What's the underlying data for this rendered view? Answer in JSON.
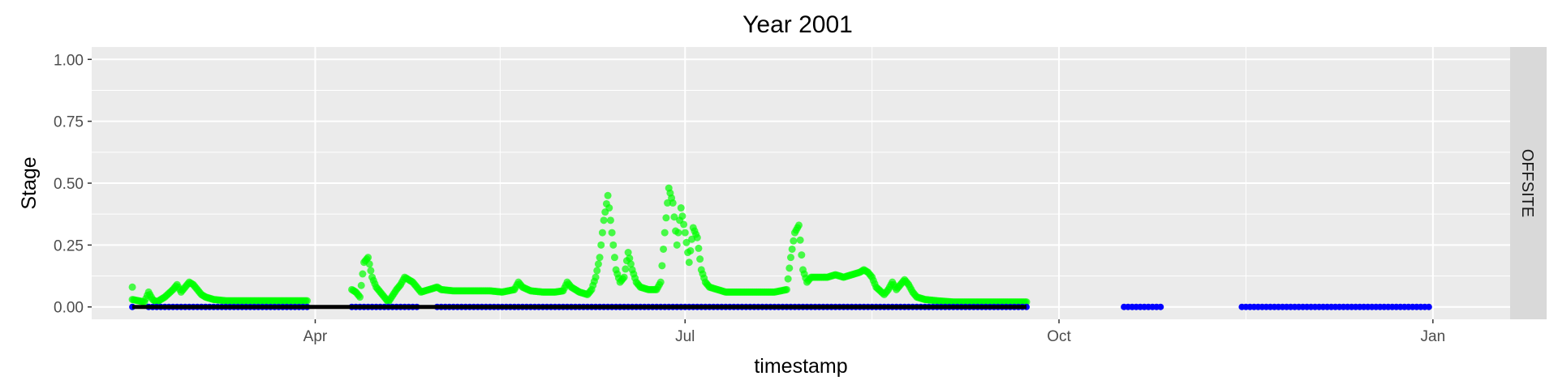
{
  "chart_data": {
    "type": "scatter",
    "title": "Year 2001",
    "xlabel": "timestamp",
    "ylabel": "Stage",
    "facet_label": "OFFSITE",
    "x_range": [
      "2001-02-05",
      "2002-01-20"
    ],
    "ylim": [
      -0.05,
      1.05
    ],
    "y_ticks": [
      {
        "value": 0.0,
        "label": "0.00"
      },
      {
        "value": 0.25,
        "label": "0.25"
      },
      {
        "value": 0.5,
        "label": "0.50"
      },
      {
        "value": 0.75,
        "label": "0.75"
      },
      {
        "value": 1.0,
        "label": "1.00"
      }
    ],
    "x_ticks": [
      {
        "date": "2001-04-01",
        "label": "Apr"
      },
      {
        "date": "2001-07-01",
        "label": "Jul"
      },
      {
        "date": "2001-10-01",
        "label": "Oct"
      },
      {
        "date": "2002-01-01",
        "label": "Jan"
      }
    ],
    "grid": true,
    "colors": {
      "panel": "#ebebeb",
      "grid": "#ffffff",
      "strip": "#d9d9d9",
      "observed": "#00ff00",
      "baseline_line": "#000000",
      "baseline_points": "#0000ff"
    },
    "series": [
      {
        "type": "scatter",
        "color": "#00ff00",
        "points": [
          [
            "2001-02-15",
            0.08
          ],
          [
            "2001-02-15",
            0.03
          ],
          [
            "2001-02-18",
            0.02
          ],
          [
            "2001-02-19",
            0.06
          ],
          [
            "2001-02-20",
            0.03
          ],
          [
            "2001-02-21",
            0.02
          ],
          [
            "2001-02-23",
            0.04
          ],
          [
            "2001-02-25",
            0.07
          ],
          [
            "2001-02-26",
            0.09
          ],
          [
            "2001-02-27",
            0.06
          ],
          [
            "2001-02-28",
            0.08
          ],
          [
            "2001-03-01",
            0.1
          ],
          [
            "2001-03-02",
            0.09
          ],
          [
            "2001-03-03",
            0.07
          ],
          [
            "2001-03-04",
            0.05
          ],
          [
            "2001-03-05",
            0.04
          ],
          [
            "2001-03-07",
            0.03
          ],
          [
            "2001-03-10",
            0.025
          ],
          [
            "2001-03-14",
            0.025
          ],
          [
            "2001-03-18",
            0.025
          ],
          [
            "2001-03-22",
            0.025
          ],
          [
            "2001-03-26",
            0.025
          ],
          [
            "2001-03-30",
            0.025
          ],
          [
            "2001-04-10",
            0.07
          ],
          [
            "2001-04-11",
            0.06
          ],
          [
            "2001-04-12",
            0.04
          ],
          [
            "2001-04-13",
            0.18
          ],
          [
            "2001-04-14",
            0.2
          ],
          [
            "2001-04-15",
            0.12
          ],
          [
            "2001-04-16",
            0.08
          ],
          [
            "2001-04-17",
            0.06
          ],
          [
            "2001-04-18",
            0.04
          ],
          [
            "2001-04-19",
            0.02
          ],
          [
            "2001-04-21",
            0.07
          ],
          [
            "2001-04-22",
            0.09
          ],
          [
            "2001-04-23",
            0.12
          ],
          [
            "2001-04-24",
            0.11
          ],
          [
            "2001-04-25",
            0.1
          ],
          [
            "2001-04-26",
            0.08
          ],
          [
            "2001-04-27",
            0.06
          ],
          [
            "2001-05-01",
            0.08
          ],
          [
            "2001-05-02",
            0.07
          ],
          [
            "2001-05-05",
            0.065
          ],
          [
            "2001-05-08",
            0.065
          ],
          [
            "2001-05-11",
            0.065
          ],
          [
            "2001-05-14",
            0.065
          ],
          [
            "2001-05-17",
            0.06
          ],
          [
            "2001-05-20",
            0.07
          ],
          [
            "2001-05-21",
            0.1
          ],
          [
            "2001-05-22",
            0.08
          ],
          [
            "2001-05-24",
            0.065
          ],
          [
            "2001-05-27",
            0.06
          ],
          [
            "2001-05-30",
            0.06
          ],
          [
            "2001-06-01",
            0.065
          ],
          [
            "2001-06-02",
            0.1
          ],
          [
            "2001-06-03",
            0.08
          ],
          [
            "2001-06-05",
            0.06
          ],
          [
            "2001-06-07",
            0.05
          ],
          [
            "2001-06-08",
            0.07
          ],
          [
            "2001-06-09",
            0.12
          ],
          [
            "2001-06-10",
            0.2
          ],
          [
            "2001-06-11",
            0.35
          ],
          [
            "2001-06-12",
            0.45
          ],
          [
            "2001-06-13",
            0.3
          ],
          [
            "2001-06-14",
            0.15
          ],
          [
            "2001-06-15",
            0.1
          ],
          [
            "2001-06-16",
            0.12
          ],
          [
            "2001-06-17",
            0.22
          ],
          [
            "2001-06-18",
            0.15
          ],
          [
            "2001-06-19",
            0.1
          ],
          [
            "2001-06-20",
            0.08
          ],
          [
            "2001-06-22",
            0.07
          ],
          [
            "2001-06-24",
            0.07
          ],
          [
            "2001-06-25",
            0.1
          ],
          [
            "2001-06-26",
            0.3
          ],
          [
            "2001-06-27",
            0.48
          ],
          [
            "2001-06-28",
            0.42
          ],
          [
            "2001-06-29",
            0.25
          ],
          [
            "2001-06-30",
            0.4
          ],
          [
            "2001-07-01",
            0.3
          ],
          [
            "2001-07-02",
            0.18
          ],
          [
            "2001-07-03",
            0.32
          ],
          [
            "2001-07-04",
            0.28
          ],
          [
            "2001-07-05",
            0.15
          ],
          [
            "2001-07-06",
            0.1
          ],
          [
            "2001-07-07",
            0.08
          ],
          [
            "2001-07-09",
            0.07
          ],
          [
            "2001-07-11",
            0.06
          ],
          [
            "2001-07-14",
            0.06
          ],
          [
            "2001-07-17",
            0.06
          ],
          [
            "2001-07-20",
            0.06
          ],
          [
            "2001-07-23",
            0.06
          ],
          [
            "2001-07-26",
            0.07
          ],
          [
            "2001-07-27",
            0.2
          ],
          [
            "2001-07-28",
            0.3
          ],
          [
            "2001-07-29",
            0.33
          ],
          [
            "2001-07-30",
            0.15
          ],
          [
            "2001-07-31",
            0.1
          ],
          [
            "2001-08-01",
            0.12
          ],
          [
            "2001-08-03",
            0.12
          ],
          [
            "2001-08-05",
            0.12
          ],
          [
            "2001-08-07",
            0.13
          ],
          [
            "2001-08-09",
            0.12
          ],
          [
            "2001-08-11",
            0.13
          ],
          [
            "2001-08-13",
            0.14
          ],
          [
            "2001-08-14",
            0.15
          ],
          [
            "2001-08-15",
            0.14
          ],
          [
            "2001-08-16",
            0.12
          ],
          [
            "2001-08-17",
            0.08
          ],
          [
            "2001-08-19",
            0.05
          ],
          [
            "2001-08-20",
            0.07
          ],
          [
            "2001-08-21",
            0.1
          ],
          [
            "2001-08-22",
            0.07
          ],
          [
            "2001-08-23",
            0.09
          ],
          [
            "2001-08-24",
            0.11
          ],
          [
            "2001-08-25",
            0.09
          ],
          [
            "2001-08-26",
            0.06
          ],
          [
            "2001-08-27",
            0.04
          ],
          [
            "2001-08-29",
            0.03
          ],
          [
            "2001-09-01",
            0.025
          ],
          [
            "2001-09-05",
            0.02
          ],
          [
            "2001-09-10",
            0.02
          ],
          [
            "2001-09-15",
            0.02
          ],
          [
            "2001-09-20",
            0.02
          ],
          [
            "2001-09-23",
            0.02
          ]
        ]
      },
      {
        "type": "line",
        "color": "#000000",
        "segments": [
          [
            "2001-02-15",
            "2001-09-23"
          ]
        ],
        "value": 0.0
      },
      {
        "type": "scatter",
        "color": "#0000ff",
        "segments": [
          [
            "2001-02-15",
            "2001-02-15"
          ],
          [
            "2001-02-19",
            "2001-03-30"
          ],
          [
            "2001-04-10",
            "2001-04-26"
          ],
          [
            "2001-05-01",
            "2001-09-23"
          ],
          [
            "2001-10-17",
            "2001-10-26"
          ],
          [
            "2001-11-15",
            "2001-12-31"
          ]
        ],
        "value": 0.0
      }
    ]
  }
}
